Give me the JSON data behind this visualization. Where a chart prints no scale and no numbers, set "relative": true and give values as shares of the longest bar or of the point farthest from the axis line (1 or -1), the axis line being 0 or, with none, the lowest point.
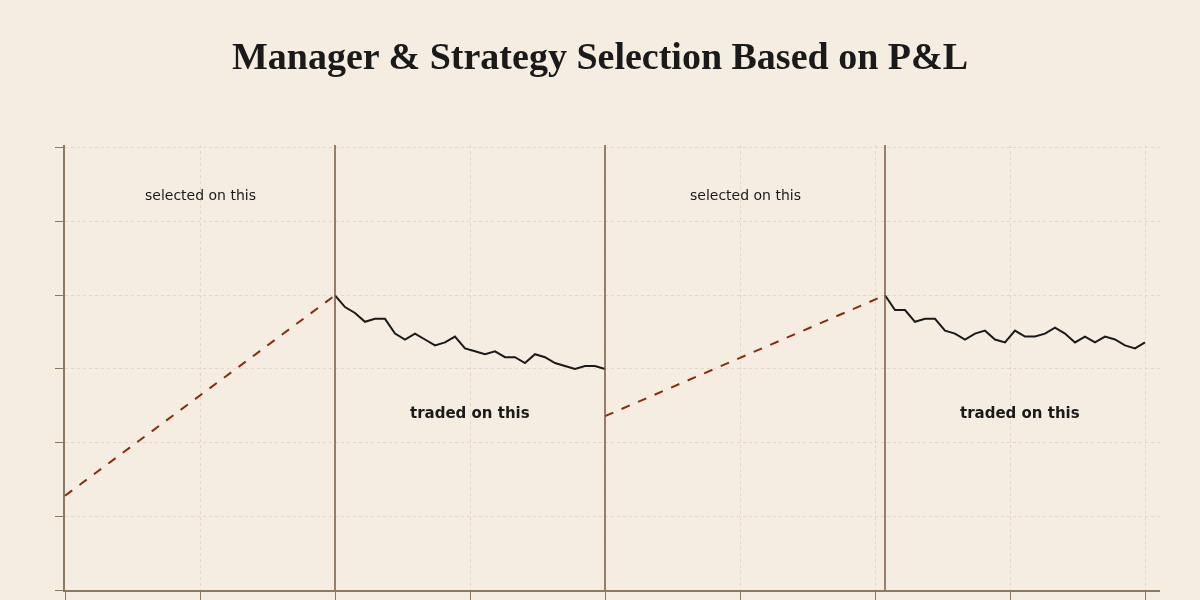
{
  "chart_data": {
    "type": "line",
    "title": "Manager & Strategy Selection Based on P&L",
    "relative": true,
    "grid": true,
    "categories": [
      null,
      null,
      null,
      null,
      null,
      null,
      null,
      null,
      null,
      null,
      null,
      null,
      null,
      null,
      null,
      null,
      null,
      null,
      null,
      null,
      null,
      null,
      null,
      null,
      null,
      null,
      null,
      null,
      null,
      null,
      null,
      null,
      null,
      null,
      null,
      null,
      null,
      null,
      null,
      null,
      null,
      null,
      null,
      null,
      null,
      null,
      null,
      null,
      null,
      null,
      null,
      null,
      null,
      null,
      null,
      null,
      null,
      null,
      null,
      null,
      null,
      null,
      null,
      null,
      null,
      null,
      null,
      null,
      null,
      null,
      null,
      null,
      null,
      null,
      null,
      null,
      null,
      null,
      null,
      null,
      null,
      null,
      null,
      null,
      null,
      null,
      null,
      null,
      null,
      null,
      null,
      null,
      null,
      null,
      null,
      null,
      null,
      null,
      null,
      null,
      null,
      null,
      null,
      null,
      null,
      null,
      null,
      null,
      null,
      null
    ],
    "series": [
      {
        "color": "#8b2a0f",
        "line_style": "dashed",
        "marker": "none",
        "values": [
          0.32,
          null,
          null,
          null,
          null,
          null,
          null,
          null,
          null,
          null,
          null,
          null,
          null,
          null,
          null,
          null,
          null,
          null,
          null,
          null,
          null,
          null,
          null,
          null,
          null,
          null,
          null,
          1.0,
          null,
          null,
          null,
          null,
          null,
          null,
          null,
          null,
          null,
          null,
          null,
          null,
          null,
          null,
          null,
          null,
          null,
          null,
          null,
          null,
          null,
          null,
          null,
          null,
          null,
          null,
          null,
          null,
          null,
          null,
          null,
          null,
          null,
          null,
          null,
          null,
          null,
          null,
          null,
          null,
          null,
          null,
          null,
          null,
          null,
          null,
          null,
          null,
          null,
          null,
          null,
          null,
          null,
          null,
          null,
          null,
          null,
          null,
          null,
          null,
          null,
          null,
          null,
          null,
          null,
          null,
          null,
          null,
          null,
          null,
          null,
          null,
          null,
          null,
          null,
          null,
          null,
          null,
          null,
          null,
          null,
          null
        ]
      },
      {
        "color": "#1a1a1a",
        "line_style": "solid",
        "marker": "none",
        "values": [
          null,
          null,
          null,
          null,
          null,
          null,
          null,
          null,
          null,
          null,
          null,
          null,
          null,
          null,
          null,
          null,
          null,
          null,
          null,
          null,
          null,
          null,
          null,
          null,
          null,
          null,
          null,
          1.0,
          0.96,
          0.94,
          0.91,
          0.92,
          0.92,
          0.87,
          0.85,
          0.87,
          0.85,
          0.83,
          0.84,
          0.86,
          0.82,
          0.81,
          0.8,
          0.81,
          0.79,
          0.79,
          0.77,
          0.8,
          0.79,
          0.77,
          0.76,
          0.75,
          0.76,
          0.76,
          0.75,
          null,
          null,
          null,
          null,
          null,
          null,
          null,
          null,
          null,
          null,
          null,
          null,
          null,
          null,
          null,
          null,
          null,
          null,
          null,
          null,
          null,
          null,
          null,
          null,
          null,
          null,
          null,
          null,
          null,
          null,
          null,
          null,
          null,
          null,
          null,
          null,
          null,
          null,
          null,
          null,
          null,
          null,
          null,
          null,
          null,
          null,
          null,
          null,
          null,
          null,
          null,
          null,
          null,
          null,
          null
        ]
      },
      {
        "color": "#8b2a0f",
        "line_style": "dashed",
        "marker": "none",
        "values": [
          null,
          null,
          null,
          null,
          null,
          null,
          null,
          null,
          null,
          null,
          null,
          null,
          null,
          null,
          null,
          null,
          null,
          null,
          null,
          null,
          null,
          null,
          null,
          null,
          null,
          null,
          null,
          null,
          null,
          null,
          null,
          null,
          null,
          null,
          null,
          null,
          null,
          null,
          null,
          null,
          null,
          null,
          null,
          null,
          null,
          null,
          null,
          null,
          null,
          null,
          null,
          null,
          null,
          null,
          0.59,
          null,
          null,
          null,
          null,
          null,
          null,
          null,
          null,
          null,
          null,
          null,
          null,
          null,
          null,
          null,
          null,
          null,
          null,
          null,
          null,
          null,
          null,
          null,
          null,
          null,
          null,
          null,
          1.0,
          null,
          null,
          null,
          null,
          null,
          null,
          null,
          null,
          null,
          null,
          null,
          null,
          null,
          null,
          null,
          null,
          null,
          null,
          null,
          null,
          null,
          null,
          null,
          null,
          null,
          null,
          null
        ]
      },
      {
        "color": "#1a1a1a",
        "line_style": "solid",
        "marker": "none",
        "values": [
          null,
          null,
          null,
          null,
          null,
          null,
          null,
          null,
          null,
          null,
          null,
          null,
          null,
          null,
          null,
          null,
          null,
          null,
          null,
          null,
          null,
          null,
          null,
          null,
          null,
          null,
          null,
          null,
          null,
          null,
          null,
          null,
          null,
          null,
          null,
          null,
          null,
          null,
          null,
          null,
          null,
          null,
          null,
          null,
          null,
          null,
          null,
          null,
          null,
          null,
          null,
          null,
          null,
          null,
          null,
          null,
          null,
          null,
          null,
          null,
          null,
          null,
          null,
          null,
          null,
          null,
          null,
          null,
          null,
          null,
          null,
          null,
          null,
          null,
          null,
          null,
          null,
          null,
          null,
          null,
          null,
          null,
          1.0,
          0.95,
          0.95,
          0.91,
          0.92,
          0.92,
          0.88,
          0.87,
          0.85,
          0.87,
          0.88,
          0.85,
          0.84,
          0.88,
          0.86,
          0.86,
          0.87,
          0.89,
          0.87,
          0.84,
          0.86,
          0.84,
          0.86,
          0.85,
          0.83,
          0.82,
          0.84,
          null
        ]
      }
    ],
    "annotations": [
      "selected on this",
      "traded on this",
      "selected on this",
      "traded on this"
    ]
  }
}
